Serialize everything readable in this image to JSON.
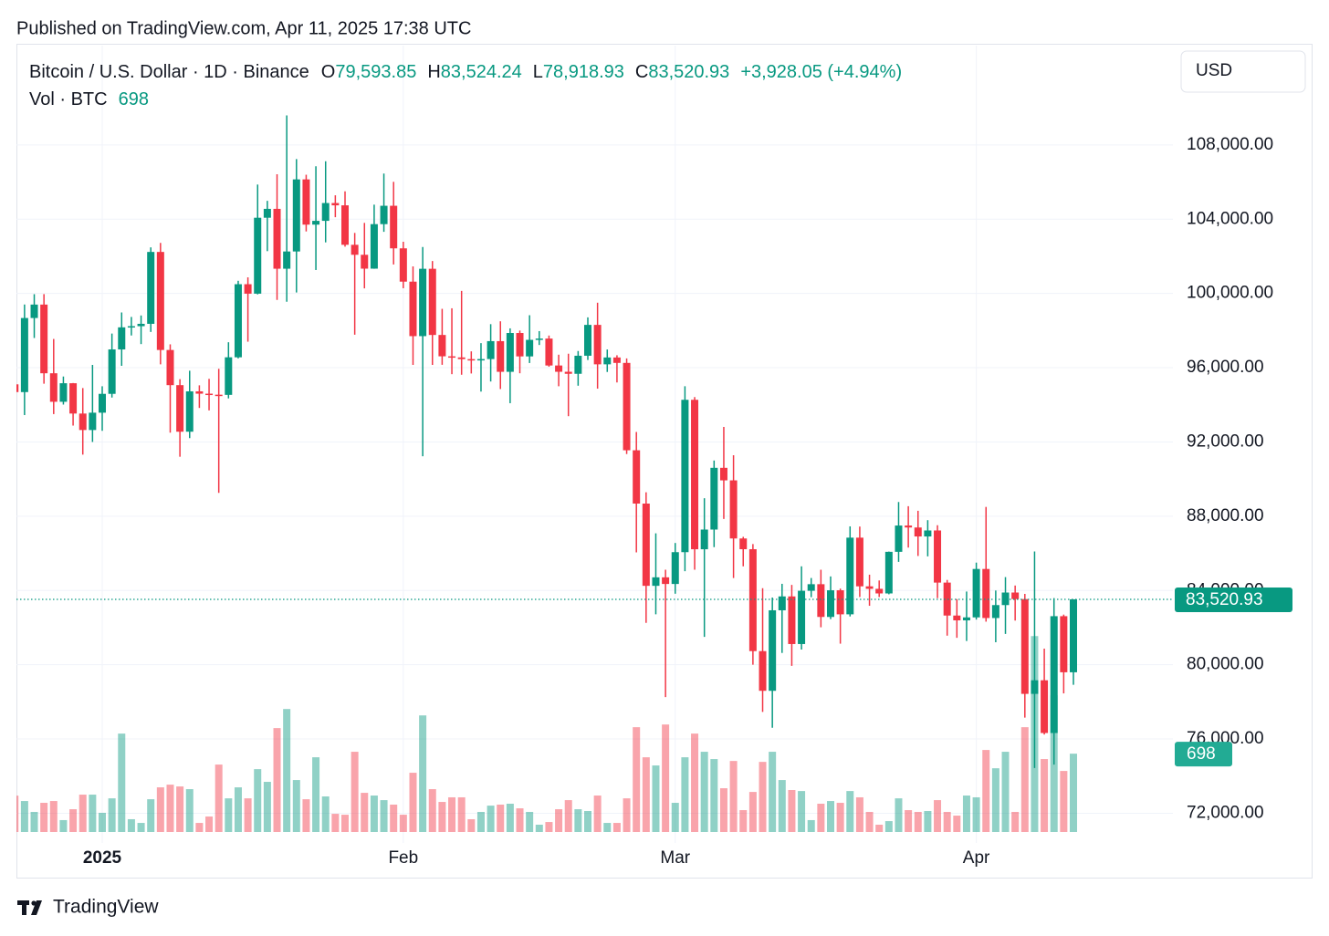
{
  "header": {
    "published": "Published on TradingView.com, Apr 11, 2025 17:38 UTC"
  },
  "chart_data": {
    "type": "candlestick",
    "legend": {
      "symbol": "Bitcoin / U.S. Dollar · 1D · Binance",
      "fields": [
        {
          "key": "O",
          "value": "79,593.85"
        },
        {
          "key": "H",
          "value": "83,524.24"
        },
        {
          "key": "L",
          "value": "78,918.93"
        },
        {
          "key": "C",
          "value": "83,520.93"
        }
      ],
      "change": "+3,928.05 (+4.94%)",
      "volume_title": "Vol · BTC"
    },
    "currency": "USD",
    "categories": [
      null,
      null,
      null,
      null,
      null,
      null,
      null,
      null,
      null,
      "2025",
      null,
      null,
      null,
      null,
      null,
      null,
      null,
      null,
      null,
      null,
      null,
      null,
      null,
      null,
      null,
      null,
      null,
      null,
      null,
      null,
      null,
      null,
      null,
      null,
      null,
      null,
      null,
      null,
      null,
      null,
      "Feb",
      null,
      null,
      null,
      null,
      null,
      null,
      null,
      null,
      null,
      null,
      null,
      null,
      null,
      null,
      null,
      null,
      null,
      null,
      null,
      null,
      null,
      null,
      null,
      null,
      null,
      null,
      null,
      "Mar",
      null,
      null,
      null,
      null,
      null,
      null,
      null,
      null,
      null,
      null,
      null,
      null,
      null,
      null,
      null,
      null,
      null,
      null,
      null,
      null,
      null,
      null,
      null,
      null,
      null,
      null,
      null,
      null,
      null,
      null,
      "Apr",
      null,
      null,
      null,
      null,
      null,
      null,
      null,
      null,
      null,
      null
    ],
    "open": [
      95104,
      94686,
      98676,
      99400,
      95700,
      94164,
      95163,
      93530,
      92643,
      93576,
      94591,
      96984,
      98174,
      98236,
      98363,
      102235,
      96954,
      95060,
      92552,
      94726,
      94600,
      94545,
      94536,
      96560,
      100497,
      99987,
      104077,
      104556,
      101331,
      102260,
      106143,
      103706,
      103910,
      104870,
      104746,
      102620,
      102082,
      101335,
      103733,
      104722,
      102429,
      100635,
      97700,
      101328,
      97763,
      96613,
      96554,
      96462,
      96450,
      96465,
      97430,
      95778,
      97869,
      96608,
      97500,
      97569,
      96118,
      95780,
      95671,
      96644,
      98306,
      96181,
      96551,
      96258,
      91552,
      88680,
      84250,
      84708,
      84350,
      86064,
      94270,
      86220,
      87281,
      90606,
      89931,
      86801,
      86222,
      80734,
      78595,
      82932,
      83680,
      81115,
      83983,
      84338,
      82574,
      84010,
      82715,
      86845,
      84223,
      84088,
      83840,
      86082,
      87498,
      87392,
      86909,
      87232,
      84424,
      82649,
      82390,
      82550,
      85158,
      82516,
      83213,
      83889,
      83537,
      78430,
      79163,
      76322,
      82615,
      79593.85
    ],
    "high": [
      96416,
      99404,
      99960,
      99963,
      97548,
      95525,
      95174,
      94903,
      96150,
      95000,
      97839,
      98976,
      98734,
      98813,
      102482,
      102724,
      97258,
      95382,
      95837,
      95050,
      95400,
      95940,
      97371,
      100681,
      100868,
      105865,
      104988,
      106422,
      109588,
      107240,
      106394,
      106850,
      107120,
      105286,
      105500,
      103260,
      103800,
      104782,
      106457,
      106012,
      102783,
      101456,
      102500,
      101745,
      99170,
      99200,
      100137,
      96880,
      97323,
      98345,
      98500,
      98119,
      98000,
      98826,
      97970,
      97732,
      96700,
      96753,
      96899,
      98711,
      99500,
      96980,
      96670,
      96500,
      92540,
      89286,
      87078,
      85120,
      86558,
      95000,
      94416,
      88967,
      91000,
      92810,
      91283,
      86890,
      86500,
      84123,
      83617,
      84358,
      84300,
      85300,
      84672,
      85117,
      84756,
      84100,
      87453,
      87443,
      84850,
      84539,
      86094,
      88765,
      88539,
      88292,
      87786,
      87515,
      84567,
      83534,
      83943,
      85500,
      88500,
      83998,
      84720,
      84266,
      83817,
      86100,
      80867,
      83588,
      82700,
      83524.24
    ],
    "low": [
      92403,
      93448,
      97600,
      95137,
      93500,
      94014,
      92881,
      91317,
      92000,
      92600,
      94392,
      96100,
      97735,
      97271,
      97926,
      96181,
      92500,
      91203,
      92206,
      93831,
      93700,
      89256,
      94346,
      96500,
      97400,
      99950,
      102277,
      99651,
      99550,
      100051,
      103339,
      101262,
      102750,
      104106,
      102520,
      97777,
      100272,
      101328,
      103319,
      101560,
      100280,
      96150,
      91231,
      96150,
      96155,
      95650,
      95620,
      95688,
      94713,
      95256,
      94850,
      94088,
      95700,
      96252,
      97223,
      96053,
      95000,
      93388,
      95029,
      96415,
      94871,
      95770,
      95205,
      91349,
      86050,
      82256,
      82716,
      78258,
      83824,
      85040,
      85117,
      81500,
      86334,
      87852,
      84667,
      85300,
      80000,
      77459,
      76606,
      80635,
      79939,
      80818,
      83639,
      82017,
      82456,
      81134,
      82600,
      83647,
      83175,
      83646,
      83794,
      85541,
      86310,
      85858,
      85837,
      83585,
      81565,
      81450,
      81279,
      82432,
      82320,
      81211,
      81659,
      82379,
      77153,
      74437,
      76239,
      74620,
      78456,
      78918.93
    ],
    "close": [
      94686,
      98676,
      99400,
      95700,
      94164,
      95163,
      93530,
      92643,
      93576,
      94591,
      96984,
      98174,
      98236,
      98363,
      102235,
      96954,
      95060,
      92552,
      94726,
      94600,
      94545,
      94536,
      96560,
      100497,
      99987,
      104077,
      104556,
      101331,
      102260,
      106143,
      103706,
      103910,
      104870,
      104746,
      102620,
      102082,
      101335,
      103733,
      104722,
      102429,
      100635,
      97700,
      101328,
      97763,
      96613,
      96554,
      96462,
      96450,
      96465,
      97430,
      95778,
      97869,
      96608,
      97500,
      97569,
      96118,
      95780,
      95671,
      96644,
      98306,
      96181,
      96551,
      96258,
      91552,
      88680,
      84250,
      84708,
      84350,
      86064,
      94270,
      86220,
      87281,
      90606,
      89931,
      86801,
      86222,
      80734,
      78595,
      82932,
      83680,
      81115,
      83983,
      84338,
      82574,
      84010,
      82715,
      86845,
      84223,
      84088,
      83840,
      86082,
      87498,
      87392,
      86909,
      87232,
      84424,
      82649,
      82390,
      82550,
      85158,
      82516,
      83213,
      83889,
      83537,
      78430,
      79163,
      76322,
      82615,
      79593.85,
      83520.93
    ],
    "volume": [
      324,
      276,
      179,
      260,
      276,
      106,
      203,
      333,
      333,
      171,
      300,
      877,
      114,
      81,
      292,
      398,
      422,
      406,
      382,
      81,
      138,
      601,
      300,
      398,
      300,
      560,
      447,
      926,
      1096,
      463,
      292,
      666,
      317,
      162,
      154,
      715,
      349,
      325,
      284,
      244,
      154,
      528,
      1039,
      382,
      268,
      309,
      309,
      114,
      179,
      235,
      244,
      252,
      211,
      179,
      65,
      89,
      203,
      284,
      203,
      187,
      325,
      81,
      81,
      300,
      934,
      666,
      593,
      958,
      260,
      666,
      877,
      715,
      650,
      390,
      633,
      195,
      357,
      625,
      715,
      463,
      374,
      365,
      106,
      252,
      276,
      260,
      365,
      309,
      179,
      65,
      97,
      300,
      195,
      179,
      187,
      284,
      179,
      146,
      325,
      309,
      731,
      568,
      715,
      179,
      934,
      1746,
      650,
      1218,
      544,
      698
    ],
    "vlim": [
      0,
      7000
    ],
    "up_color": "#089981",
    "down_color": "#f23645",
    "ylim": [
      70400,
      113300
    ],
    "yticks": [
      {
        "value": 72000,
        "label": "72,000.00"
      },
      {
        "value": 76000,
        "label": "76,000.00"
      },
      {
        "value": 80000,
        "label": "80,000.00"
      },
      {
        "value": 84000,
        "label": "84,000.00"
      },
      {
        "value": 88000,
        "label": "88,000.00"
      },
      {
        "value": 92000,
        "label": "92,000.00"
      },
      {
        "value": 96000,
        "label": "96,000.00"
      },
      {
        "value": 100000,
        "label": "100,000.00"
      },
      {
        "value": 104000,
        "label": "104,000.00"
      },
      {
        "value": 108000,
        "label": "108,000.00"
      }
    ],
    "grid": true,
    "last_price": {
      "value": 83520.93,
      "label": "83,520.93"
    }
  },
  "footer": {
    "brand": "TradingView"
  }
}
